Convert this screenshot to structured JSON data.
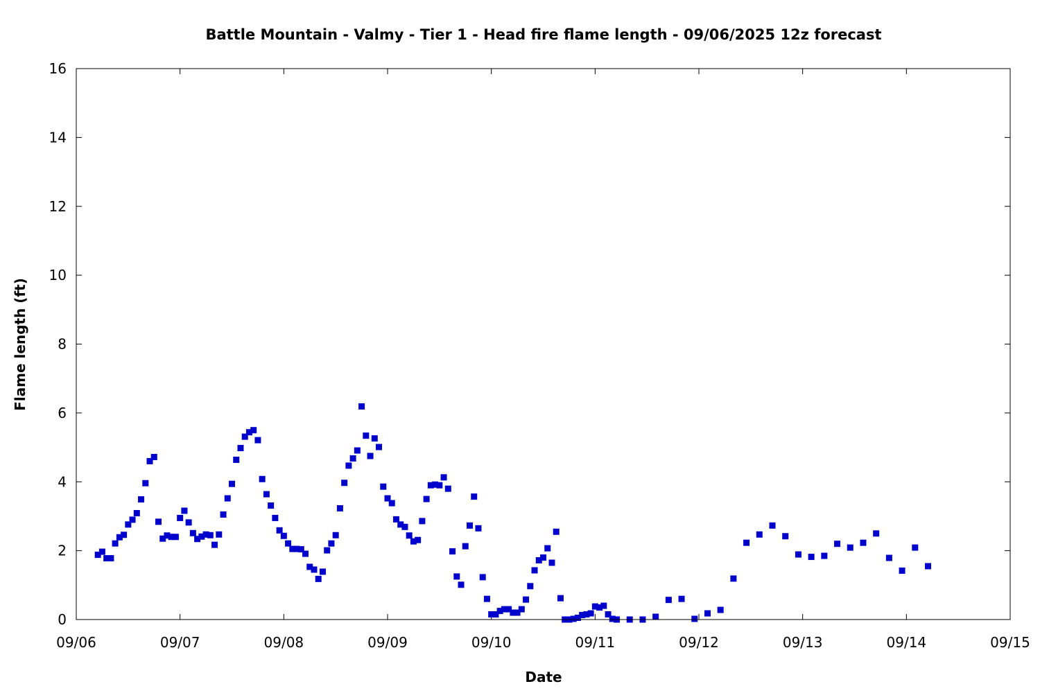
{
  "chart_data": {
    "type": "scatter",
    "title": "Battle Mountain - Valmy - Tier 1 - Head fire flame length - 09/06/2025 12z forecast",
    "xlabel": "Date",
    "ylabel": "Flame length (ft)",
    "x_ticks": [
      "09/06",
      "09/07",
      "09/08",
      "09/09",
      "09/10",
      "09/11",
      "09/12",
      "09/13",
      "09/14",
      "09/15"
    ],
    "xlim": [
      "09/06 00:00",
      "09/15 00:00"
    ],
    "y_ticks": [
      0,
      2,
      4,
      6,
      8,
      10,
      12,
      14,
      16
    ],
    "ylim": [
      0,
      16
    ],
    "grid": false,
    "marker_color": "#0000cc",
    "marker": "square",
    "series": [
      {
        "points": [
          [
            "09/06 05:00",
            1.88
          ],
          [
            "09/06 06:00",
            1.97
          ],
          [
            "09/06 07:00",
            1.78
          ],
          [
            "09/06 08:00",
            1.78
          ],
          [
            "09/06 09:00",
            2.21
          ],
          [
            "09/06 10:00",
            2.39
          ],
          [
            "09/06 11:00",
            2.46
          ],
          [
            "09/06 12:00",
            2.76
          ],
          [
            "09/06 13:00",
            2.9
          ],
          [
            "09/06 14:00",
            3.09
          ],
          [
            "09/06 15:00",
            3.49
          ],
          [
            "09/06 16:00",
            3.96
          ],
          [
            "09/06 17:00",
            4.6
          ],
          [
            "09/06 18:00",
            4.72
          ],
          [
            "09/06 19:00",
            2.84
          ],
          [
            "09/06 20:00",
            2.35
          ],
          [
            "09/06 21:00",
            2.44
          ],
          [
            "09/06 22:00",
            2.4
          ],
          [
            "09/06 23:00",
            2.4
          ],
          [
            "09/07 00:00",
            2.95
          ],
          [
            "09/07 01:00",
            3.16
          ],
          [
            "09/07 02:00",
            2.82
          ],
          [
            "09/07 03:00",
            2.51
          ],
          [
            "09/07 04:00",
            2.34
          ],
          [
            "09/07 05:00",
            2.41
          ],
          [
            "09/07 06:00",
            2.47
          ],
          [
            "09/07 07:00",
            2.45
          ],
          [
            "09/07 08:00",
            2.17
          ],
          [
            "09/07 09:00",
            2.47
          ],
          [
            "09/07 10:00",
            3.05
          ],
          [
            "09/07 11:00",
            3.52
          ],
          [
            "09/07 12:00",
            3.94
          ],
          [
            "09/07 13:00",
            4.64
          ],
          [
            "09/07 14:00",
            4.98
          ],
          [
            "09/07 15:00",
            5.31
          ],
          [
            "09/07 16:00",
            5.44
          ],
          [
            "09/07 17:00",
            5.5
          ],
          [
            "09/07 18:00",
            5.21
          ],
          [
            "09/07 19:00",
            4.08
          ],
          [
            "09/07 20:00",
            3.64
          ],
          [
            "09/07 21:00",
            3.31
          ],
          [
            "09/07 22:00",
            2.95
          ],
          [
            "09/07 23:00",
            2.59
          ],
          [
            "09/08 00:00",
            2.43
          ],
          [
            "09/08 01:00",
            2.21
          ],
          [
            "09/08 02:00",
            2.05
          ],
          [
            "09/08 03:00",
            2.05
          ],
          [
            "09/08 04:00",
            2.04
          ],
          [
            "09/08 05:00",
            1.91
          ],
          [
            "09/08 06:00",
            1.53
          ],
          [
            "09/08 07:00",
            1.45
          ],
          [
            "09/08 08:00",
            1.18
          ],
          [
            "09/08 09:00",
            1.39
          ],
          [
            "09/08 10:00",
            2.01
          ],
          [
            "09/08 11:00",
            2.21
          ],
          [
            "09/08 12:00",
            2.45
          ],
          [
            "09/08 13:00",
            3.23
          ],
          [
            "09/08 14:00",
            3.97
          ],
          [
            "09/08 15:00",
            4.47
          ],
          [
            "09/08 16:00",
            4.68
          ],
          [
            "09/08 17:00",
            4.91
          ],
          [
            "09/08 18:00",
            6.19
          ],
          [
            "09/08 19:00",
            5.34
          ],
          [
            "09/08 20:00",
            4.75
          ],
          [
            "09/08 21:00",
            5.26
          ],
          [
            "09/08 22:00",
            5.01
          ],
          [
            "09/08 23:00",
            3.86
          ],
          [
            "09/09 00:00",
            3.52
          ],
          [
            "09/09 01:00",
            3.38
          ],
          [
            "09/09 02:00",
            2.91
          ],
          [
            "09/09 03:00",
            2.76
          ],
          [
            "09/09 04:00",
            2.69
          ],
          [
            "09/09 05:00",
            2.44
          ],
          [
            "09/09 06:00",
            2.27
          ],
          [
            "09/09 07:00",
            2.31
          ],
          [
            "09/09 08:00",
            2.86
          ],
          [
            "09/09 09:00",
            3.5
          ],
          [
            "09/09 10:00",
            3.9
          ],
          [
            "09/09 11:00",
            3.92
          ],
          [
            "09/09 12:00",
            3.9
          ],
          [
            "09/09 13:00",
            4.13
          ],
          [
            "09/09 14:00",
            3.8
          ],
          [
            "09/09 15:00",
            1.98
          ],
          [
            "09/09 16:00",
            1.25
          ],
          [
            "09/09 17:00",
            1.01
          ],
          [
            "09/09 18:00",
            2.13
          ],
          [
            "09/09 19:00",
            2.73
          ],
          [
            "09/09 20:00",
            3.57
          ],
          [
            "09/09 21:00",
            2.65
          ],
          [
            "09/09 22:00",
            1.23
          ],
          [
            "09/09 23:00",
            0.6
          ],
          [
            "09/10 00:00",
            0.15
          ],
          [
            "09/10 01:00",
            0.15
          ],
          [
            "09/10 02:00",
            0.25
          ],
          [
            "09/10 03:00",
            0.3
          ],
          [
            "09/10 04:00",
            0.3
          ],
          [
            "09/10 05:00",
            0.2
          ],
          [
            "09/10 06:00",
            0.2
          ],
          [
            "09/10 07:00",
            0.3
          ],
          [
            "09/10 08:00",
            0.58
          ],
          [
            "09/10 09:00",
            0.97
          ],
          [
            "09/10 10:00",
            1.43
          ],
          [
            "09/10 11:00",
            1.72
          ],
          [
            "09/10 12:00",
            1.8
          ],
          [
            "09/10 13:00",
            2.07
          ],
          [
            "09/10 14:00",
            1.65
          ],
          [
            "09/10 15:00",
            2.55
          ],
          [
            "09/10 16:00",
            0.62
          ],
          [
            "09/10 17:00",
            0.0
          ],
          [
            "09/10 18:00",
            0.0
          ],
          [
            "09/10 19:00",
            0.02
          ],
          [
            "09/10 20:00",
            0.05
          ],
          [
            "09/10 21:00",
            0.13
          ],
          [
            "09/10 22:00",
            0.15
          ],
          [
            "09/10 23:00",
            0.18
          ],
          [
            "09/11 00:00",
            0.38
          ],
          [
            "09/11 01:00",
            0.35
          ],
          [
            "09/11 02:00",
            0.4
          ],
          [
            "09/11 03:00",
            0.15
          ],
          [
            "09/11 04:00",
            0.02
          ],
          [
            "09/11 05:00",
            0.0
          ],
          [
            "09/11 08:00",
            0.0
          ],
          [
            "09/11 11:00",
            0.0
          ],
          [
            "09/11 14:00",
            0.08
          ],
          [
            "09/11 17:00",
            0.57
          ],
          [
            "09/11 20:00",
            0.6
          ],
          [
            "09/11 23:00",
            0.02
          ],
          [
            "09/12 02:00",
            0.18
          ],
          [
            "09/12 05:00",
            0.28
          ],
          [
            "09/12 08:00",
            1.19
          ],
          [
            "09/12 11:00",
            2.23
          ],
          [
            "09/12 14:00",
            2.47
          ],
          [
            "09/12 17:00",
            2.73
          ],
          [
            "09/12 20:00",
            2.42
          ],
          [
            "09/12 23:00",
            1.89
          ],
          [
            "09/13 02:00",
            1.82
          ],
          [
            "09/13 05:00",
            1.85
          ],
          [
            "09/13 08:00",
            2.2
          ],
          [
            "09/13 11:00",
            2.09
          ],
          [
            "09/13 14:00",
            2.23
          ],
          [
            "09/13 17:00",
            2.5
          ],
          [
            "09/13 20:00",
            1.79
          ],
          [
            "09/13 23:00",
            1.42
          ],
          [
            "09/14 02:00",
            2.09
          ],
          [
            "09/14 05:00",
            1.55
          ]
        ]
      }
    ]
  }
}
